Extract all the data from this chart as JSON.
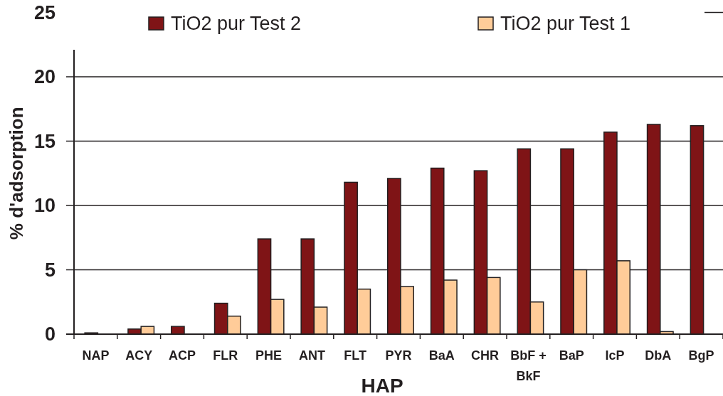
{
  "chart_data": {
    "type": "bar",
    "xlabel": "HAP",
    "ylabel": "% d'adsorption",
    "categories": [
      "NAP",
      "ACY",
      "ACP",
      "FLR",
      "PHE",
      "ANT",
      "FLT",
      "PYR",
      "BaA",
      "CHR",
      "BbF + BkF",
      "BaP",
      "IcP",
      "DbA",
      "BgP"
    ],
    "series": [
      {
        "name": "TiO2 pur Test 2",
        "color": "#7f1416",
        "values": [
          0.1,
          0.4,
          0.6,
          2.4,
          7.4,
          7.4,
          11.8,
          12.1,
          12.9,
          12.7,
          14.4,
          14.4,
          15.7,
          16.3,
          16.2
        ]
      },
      {
        "name": "TiO2 pur Test 1",
        "color": "#ffcc99",
        "values": [
          null,
          0.6,
          null,
          1.4,
          2.7,
          2.1,
          3.5,
          3.7,
          4.2,
          4.4,
          2.5,
          5.0,
          5.7,
          0.2,
          null
        ]
      }
    ],
    "ylim": [
      0,
      25
    ],
    "yticks": [
      0,
      5,
      10,
      15,
      20,
      25
    ],
    "grid": "y",
    "legend": "top"
  }
}
